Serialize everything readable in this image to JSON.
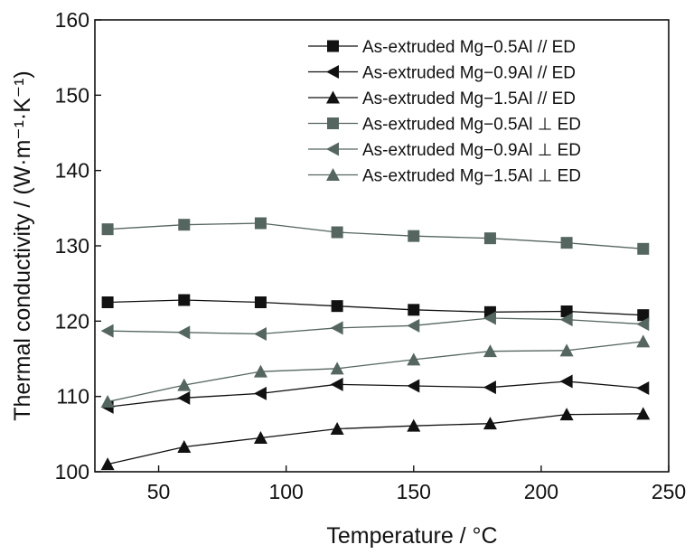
{
  "chart_data": {
    "type": "line",
    "title": "",
    "xlabel": "Temperature / °C",
    "ylabel": "Thermal conductivity / (W·m⁻¹·K⁻¹)",
    "xlim": [
      25,
      250
    ],
    "ylim": [
      100,
      160
    ],
    "xticks": [
      50,
      100,
      150,
      200,
      250
    ],
    "yticks": [
      100,
      110,
      120,
      130,
      140,
      150,
      160
    ],
    "grid": false,
    "legend_position": "top-right",
    "x": [
      30,
      60,
      90,
      120,
      150,
      180,
      210,
      240
    ],
    "series": [
      {
        "name": "As-extruded Mg−0.5Al // ED",
        "marker": "square",
        "color": "#111111",
        "values": [
          122.5,
          122.8,
          122.5,
          122.0,
          121.5,
          121.2,
          121.3,
          120.8
        ]
      },
      {
        "name": "As-extruded Mg−0.9Al // ED",
        "marker": "triangle-left",
        "color": "#111111",
        "values": [
          108.6,
          109.8,
          110.4,
          111.6,
          111.4,
          111.2,
          112.0,
          111.1
        ]
      },
      {
        "name": "As-extruded Mg−1.5Al // ED",
        "marker": "triangle-up",
        "color": "#111111",
        "values": [
          101.0,
          103.3,
          104.5,
          105.7,
          106.1,
          106.4,
          107.6,
          107.7
        ]
      },
      {
        "name": "As-extruded Mg−0.5Al ⊥ ED",
        "marker": "square",
        "color": "#556660",
        "values": [
          132.2,
          132.8,
          133.0,
          131.8,
          131.3,
          131.0,
          130.4,
          129.6
        ]
      },
      {
        "name": "As-extruded Mg−0.9Al ⊥ ED",
        "marker": "triangle-left",
        "color": "#556660",
        "values": [
          118.7,
          118.5,
          118.3,
          119.1,
          119.4,
          120.4,
          120.2,
          119.6
        ]
      },
      {
        "name": "As-extruded Mg−1.5Al ⊥ ED",
        "marker": "triangle-up",
        "color": "#556660",
        "values": [
          109.3,
          111.5,
          113.3,
          113.7,
          114.9,
          116.0,
          116.1,
          117.3
        ]
      }
    ]
  }
}
